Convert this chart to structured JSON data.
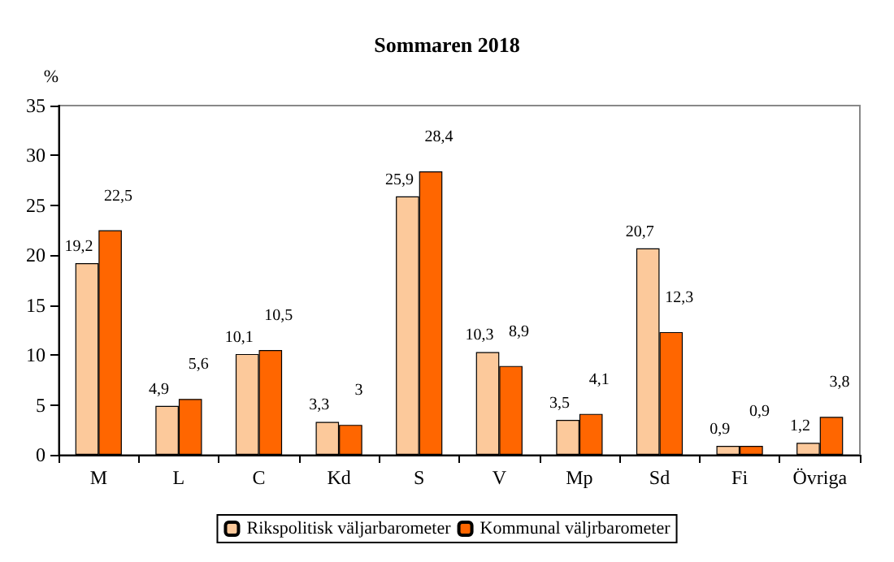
{
  "chart_data": {
    "type": "bar",
    "title": "Sommaren 2018",
    "ylabel": "%",
    "categories": [
      "M",
      "L",
      "C",
      "Kd",
      "S",
      "V",
      "Mp",
      "Sd",
      "Fi",
      "Övriga"
    ],
    "series": [
      {
        "name": "Rikspolitisk väljarbarometer",
        "color": "#fcc99b",
        "values": [
          19.2,
          4.9,
          10.1,
          3.3,
          25.9,
          10.3,
          3.5,
          20.7,
          0.9,
          1.2
        ],
        "value_labels": [
          "19,2",
          "4,9",
          "10,1",
          "3,3",
          "25,9",
          "10,3",
          "3,5",
          "20,7",
          "0,9",
          "1,2"
        ]
      },
      {
        "name": "Kommunal väljrbarometer",
        "color": "#ff6600",
        "values": [
          22.5,
          5.6,
          10.5,
          3,
          28.4,
          8.9,
          4.1,
          12.3,
          0.9,
          3.8
        ],
        "value_labels": [
          "22,5",
          "5,6",
          "10,5",
          "3",
          "28,4",
          "8,9",
          "4,1",
          "12,3",
          "0,9",
          "3,8"
        ]
      }
    ],
    "ylim": [
      0,
      35
    ],
    "yticks": [
      0,
      5,
      10,
      15,
      20,
      25,
      30,
      35
    ],
    "grid": false,
    "legend": "bottom"
  }
}
